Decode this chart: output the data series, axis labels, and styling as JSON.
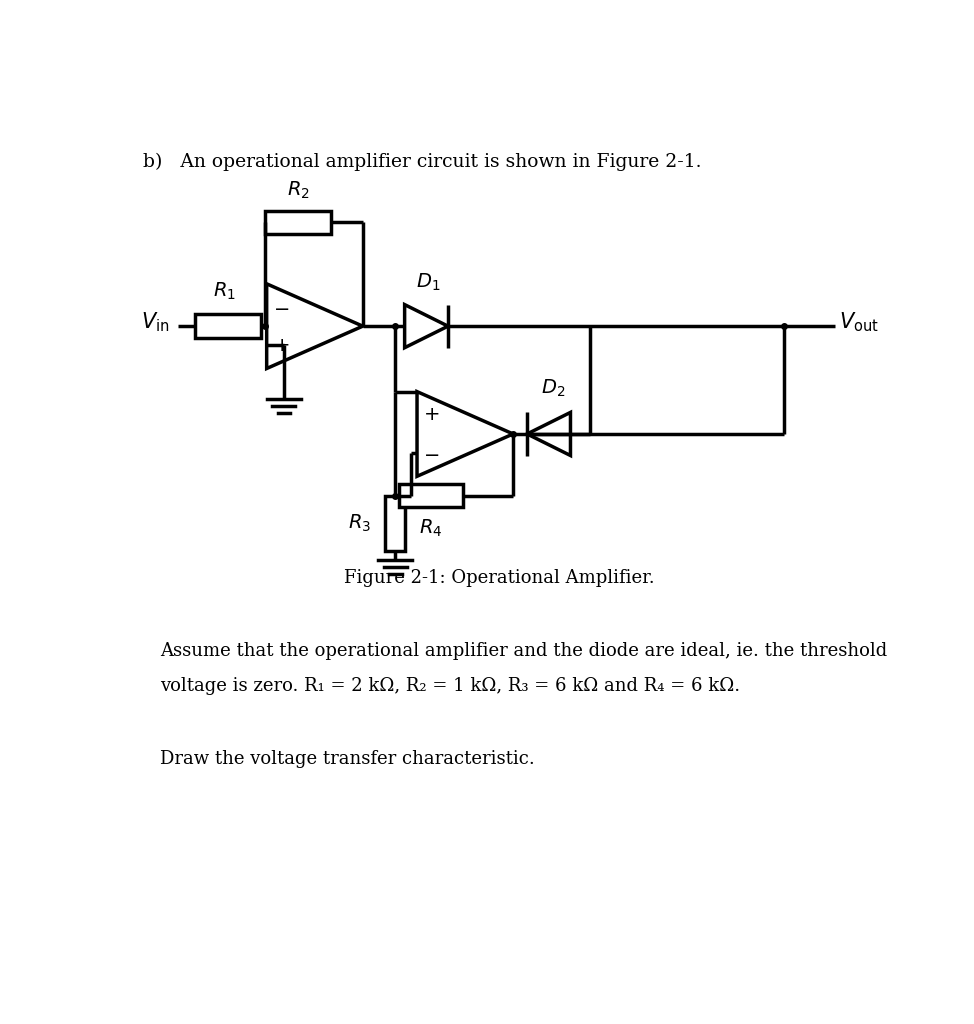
{
  "title_text": "b)   An operational amplifier circuit is shown in Figure 2-1.",
  "figure_caption": "Figure 2-1: Operational Amplifier.",
  "assume_line1": "Assume that the operational amplifier and the diode are ideal, ie. the threshold",
  "assume_line2": "voltage is zero. R₁ = 2 kΩ, R₂ = 1 kΩ, R₃ = 6 kΩ and R₄ = 6 kΩ.",
  "draw_text": "Draw the voltage transfer characteristic.",
  "bg_color": "#ffffff",
  "lc": "#000000",
  "lw": 2.5
}
